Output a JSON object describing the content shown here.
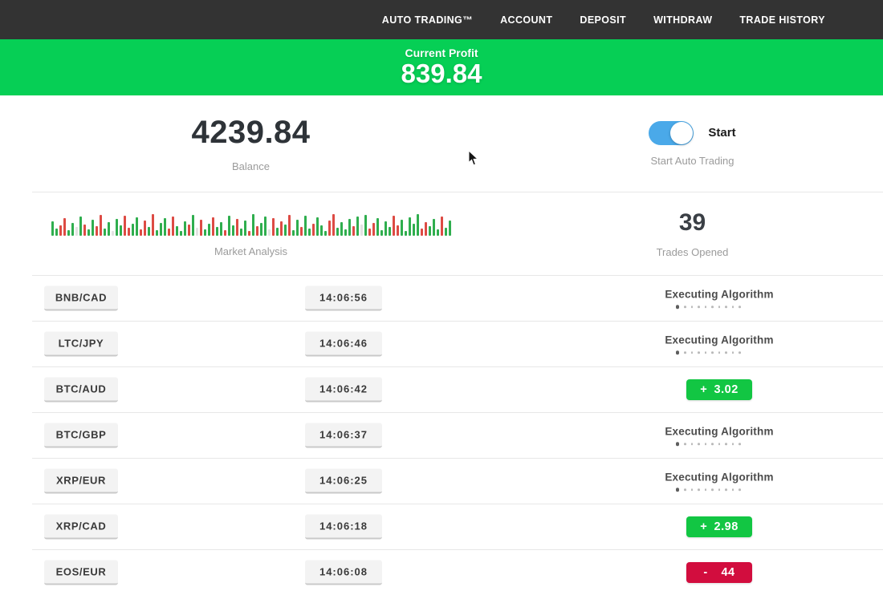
{
  "nav": {
    "items": [
      {
        "label": "AUTO TRADING™"
      },
      {
        "label": "ACCOUNT"
      },
      {
        "label": "DEPOSIT"
      },
      {
        "label": "WITHDRAW"
      },
      {
        "label": "TRADE HISTORY"
      }
    ]
  },
  "profit_banner": {
    "label": "Current Profit",
    "value": "839.84"
  },
  "stats": {
    "balance": {
      "value": "4239.84",
      "label": "Balance"
    },
    "auto_trading": {
      "toggle_label": "Start",
      "caption": "Start Auto Trading",
      "toggle_on": true
    },
    "market_analysis": {
      "label": "Market Analysis",
      "bars": [
        [
          18,
          "g"
        ],
        [
          9,
          "g"
        ],
        [
          13,
          "r"
        ],
        [
          22,
          "r"
        ],
        [
          7,
          "g"
        ],
        [
          16,
          "g"
        ],
        [
          11,
          "lg"
        ],
        [
          24,
          "g"
        ],
        [
          14,
          "r"
        ],
        [
          8,
          "g"
        ],
        [
          20,
          "g"
        ],
        [
          12,
          "r"
        ],
        [
          26,
          "r"
        ],
        [
          9,
          "g"
        ],
        [
          17,
          "g"
        ],
        [
          6,
          "lg"
        ],
        [
          21,
          "g"
        ],
        [
          13,
          "g"
        ],
        [
          25,
          "r"
        ],
        [
          10,
          "r"
        ],
        [
          15,
          "g"
        ],
        [
          23,
          "g"
        ],
        [
          8,
          "r"
        ],
        [
          19,
          "r"
        ],
        [
          11,
          "g"
        ],
        [
          27,
          "r"
        ],
        [
          7,
          "g"
        ],
        [
          16,
          "g"
        ],
        [
          22,
          "g"
        ],
        [
          9,
          "r"
        ],
        [
          24,
          "r"
        ],
        [
          12,
          "g"
        ],
        [
          6,
          "g"
        ],
        [
          18,
          "g"
        ],
        [
          14,
          "r"
        ],
        [
          26,
          "g"
        ],
        [
          10,
          "lg"
        ],
        [
          20,
          "r"
        ],
        [
          8,
          "g"
        ],
        [
          15,
          "g"
        ],
        [
          23,
          "r"
        ],
        [
          11,
          "g"
        ],
        [
          17,
          "g"
        ],
        [
          7,
          "r"
        ],
        [
          25,
          "g"
        ],
        [
          13,
          "g"
        ],
        [
          21,
          "r"
        ],
        [
          9,
          "g"
        ],
        [
          19,
          "g"
        ],
        [
          6,
          "r"
        ],
        [
          27,
          "g"
        ],
        [
          12,
          "r"
        ],
        [
          16,
          "g"
        ],
        [
          24,
          "g"
        ],
        [
          8,
          "lg"
        ],
        [
          22,
          "r"
        ],
        [
          10,
          "g"
        ],
        [
          18,
          "r"
        ],
        [
          14,
          "g"
        ],
        [
          26,
          "r"
        ],
        [
          7,
          "g"
        ],
        [
          20,
          "g"
        ],
        [
          11,
          "r"
        ],
        [
          25,
          "g"
        ],
        [
          9,
          "g"
        ],
        [
          15,
          "r"
        ],
        [
          23,
          "g"
        ],
        [
          13,
          "g"
        ],
        [
          6,
          "g"
        ],
        [
          19,
          "r"
        ],
        [
          27,
          "r"
        ],
        [
          10,
          "g"
        ],
        [
          17,
          "g"
        ],
        [
          8,
          "g"
        ],
        [
          21,
          "g"
        ],
        [
          12,
          "r"
        ],
        [
          24,
          "g"
        ],
        [
          14,
          "lg"
        ],
        [
          26,
          "g"
        ],
        [
          9,
          "r"
        ],
        [
          16,
          "r"
        ],
        [
          22,
          "g"
        ],
        [
          7,
          "g"
        ],
        [
          18,
          "g"
        ],
        [
          11,
          "g"
        ],
        [
          25,
          "r"
        ],
        [
          13,
          "r"
        ],
        [
          20,
          "g"
        ],
        [
          6,
          "g"
        ],
        [
          23,
          "g"
        ],
        [
          15,
          "g"
        ],
        [
          27,
          "g"
        ],
        [
          9,
          "r"
        ],
        [
          17,
          "r"
        ],
        [
          12,
          "g"
        ],
        [
          21,
          "g"
        ],
        [
          8,
          "g"
        ],
        [
          24,
          "r"
        ],
        [
          10,
          "g"
        ],
        [
          19,
          "g"
        ]
      ]
    },
    "trades_opened": {
      "value": "39",
      "label": "Trades Opened"
    }
  },
  "executing_status": {
    "text": "Executing Algorithm",
    "dot_count": 10
  },
  "trades": [
    {
      "pair": "BNB/CAD",
      "time": "14:06:56",
      "status": "executing"
    },
    {
      "pair": "LTC/JPY",
      "time": "14:06:46",
      "status": "executing"
    },
    {
      "pair": "BTC/AUD",
      "time": "14:06:42",
      "status": "profit",
      "result_sign": "+",
      "result_value": "3.02"
    },
    {
      "pair": "BTC/GBP",
      "time": "14:06:37",
      "status": "executing"
    },
    {
      "pair": "XRP/EUR",
      "time": "14:06:25",
      "status": "executing"
    },
    {
      "pair": "XRP/CAD",
      "time": "14:06:18",
      "status": "profit",
      "result_sign": "+",
      "result_value": "2.98"
    },
    {
      "pair": "EOS/EUR",
      "time": "14:06:08",
      "status": "loss",
      "result_sign": "-",
      "result_value": "44"
    }
  ],
  "colors": {
    "nav_bg": "#333333",
    "banner_green": "#06cf55",
    "profit_green": "#12c643",
    "loss_red": "#d20d3e",
    "toggle_blue": "#4aa9e9"
  }
}
